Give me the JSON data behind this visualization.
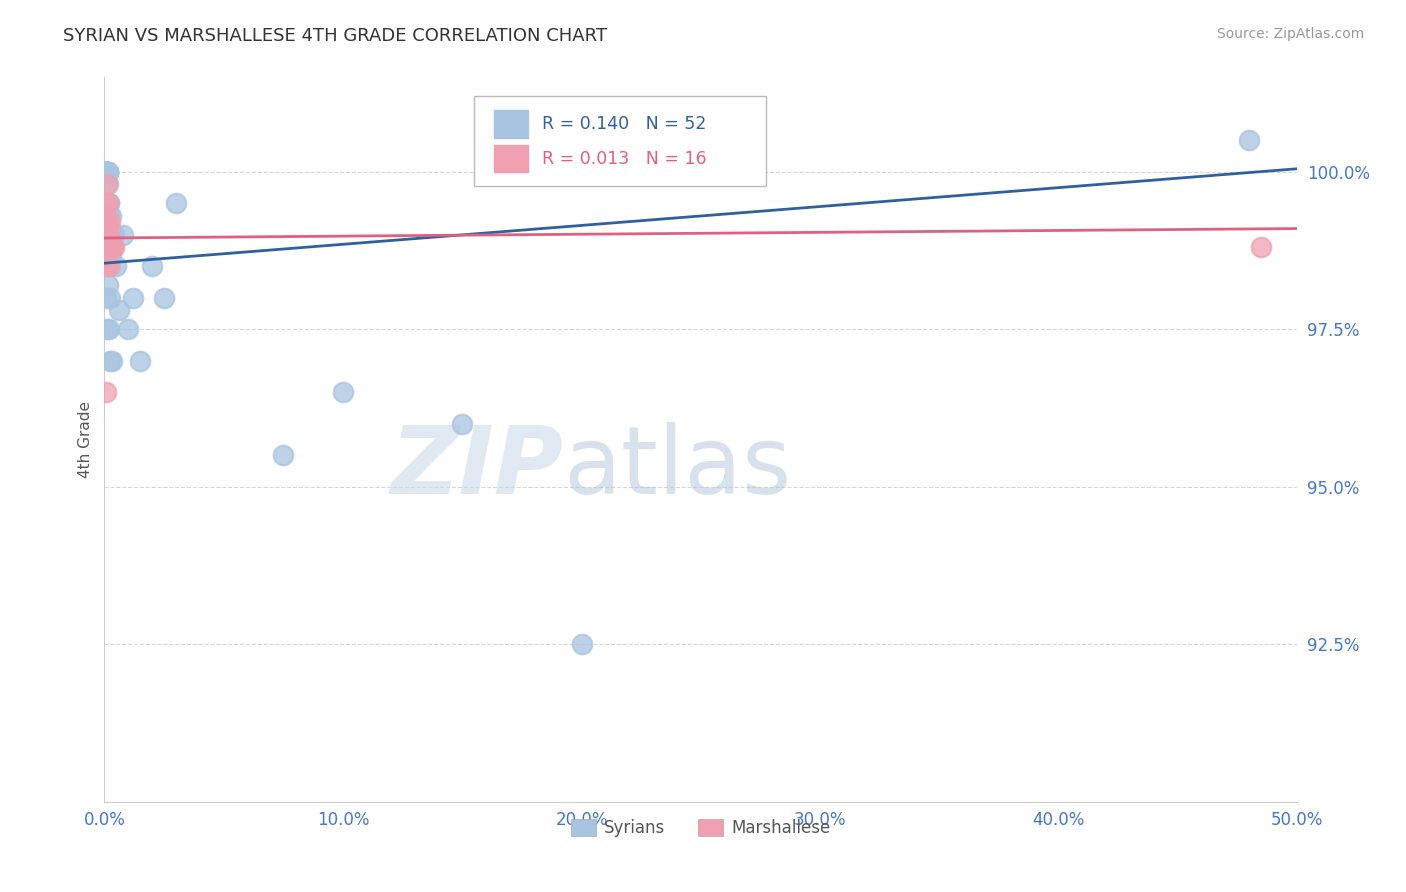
{
  "title": "SYRIAN VS MARSHALLESE 4TH GRADE CORRELATION CHART",
  "source": "Source: ZipAtlas.com",
  "ylabel": "4th Grade",
  "xmin": 0.0,
  "xmax": 50.0,
  "ymin": 90.0,
  "ymax": 101.5,
  "yticks": [
    92.5,
    95.0,
    97.5,
    100.0
  ],
  "xticks": [
    0.0,
    10.0,
    20.0,
    30.0,
    40.0,
    50.0
  ],
  "r_syrian": 0.14,
  "n_syrian": 52,
  "r_marshallese": 0.013,
  "n_marshallese": 16,
  "syrian_color": "#a8c4e0",
  "marshallese_color": "#f0a0b0",
  "syrian_line_color": "#3060a0",
  "marshallese_line_color": "#e06080",
  "background_color": "#ffffff",
  "grid_color": "#cccccc",
  "title_color": "#333333",
  "axis_label_color": "#555555",
  "tick_label_color": "#4477cc",
  "syrian_x": [
    0.05,
    0.08,
    0.1,
    0.12,
    0.13,
    0.13,
    0.14,
    0.14,
    0.15,
    0.15,
    0.15,
    0.16,
    0.17,
    0.18,
    0.18,
    0.19,
    0.2,
    0.21,
    0.22,
    0.23,
    0.25,
    0.26,
    0.27,
    0.28,
    0.3,
    0.35,
    0.4,
    0.5,
    0.6,
    0.8,
    1.0,
    1.2,
    1.5,
    2.0,
    2.5,
    3.0,
    0.05,
    0.07,
    0.09,
    0.11,
    0.13,
    0.15,
    0.18,
    0.2,
    0.22,
    0.25,
    0.3,
    7.5,
    10.0,
    15.0,
    20.0,
    48.0
  ],
  "syrian_y": [
    100.0,
    100.0,
    100.0,
    100.0,
    100.0,
    100.0,
    100.0,
    100.0,
    100.0,
    100.0,
    99.8,
    99.5,
    99.2,
    99.0,
    99.3,
    99.5,
    98.8,
    99.5,
    99.0,
    99.1,
    98.5,
    99.0,
    98.7,
    99.3,
    99.0,
    98.8,
    99.0,
    98.5,
    97.8,
    99.0,
    97.5,
    98.0,
    97.0,
    98.5,
    98.0,
    99.5,
    98.0,
    99.0,
    99.5,
    98.5,
    97.5,
    98.2,
    97.5,
    99.0,
    97.0,
    98.0,
    97.0,
    95.5,
    96.5,
    96.0,
    92.5,
    100.5
  ],
  "marshallese_x": [
    0.04,
    0.06,
    0.07,
    0.08,
    0.1,
    0.12,
    0.14,
    0.15,
    0.16,
    0.18,
    0.2,
    0.22,
    0.25,
    0.3,
    0.4,
    48.5
  ],
  "marshallese_y": [
    99.3,
    96.5,
    98.5,
    99.5,
    99.8,
    99.2,
    99.5,
    99.2,
    99.0,
    98.5,
    99.0,
    99.2,
    98.8,
    98.8,
    98.8,
    98.8
  ],
  "trend_syrian_x0": 0.0,
  "trend_syrian_y0": 98.55,
  "trend_syrian_x1": 50.0,
  "trend_syrian_y1": 100.05,
  "trend_marsh_x0": 0.0,
  "trend_marsh_y0": 98.95,
  "trend_marsh_x1": 50.0,
  "trend_marsh_y1": 99.1
}
